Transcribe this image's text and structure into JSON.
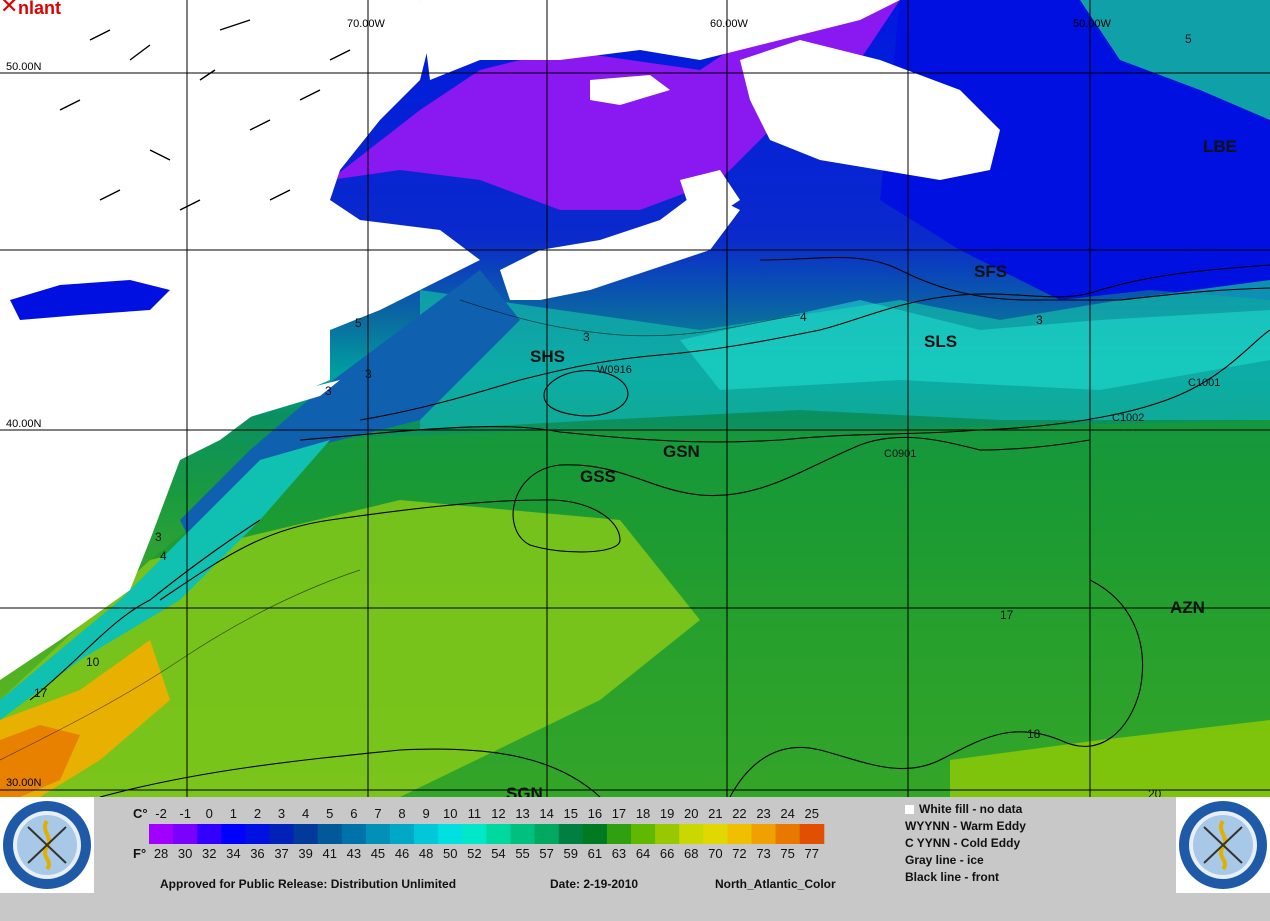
{
  "panel": {
    "title": "nlant",
    "close_glyph": "✕"
  },
  "grid": {
    "longitudes": [
      "70.00W",
      "60.00W",
      "50.00W"
    ],
    "latitudes": [
      "50.00N",
      "40.00N",
      "30.00N"
    ]
  },
  "front_labels": [
    "LBE",
    "SFS",
    "SLS",
    "SHS",
    "GSN",
    "GSS",
    "AZN",
    "SGN"
  ],
  "eddies": [
    "W0916",
    "C1001",
    "C1002",
    "C0901"
  ],
  "isotherm_labels": [
    "5",
    "5",
    "4",
    "3",
    "3",
    "3",
    "3",
    "3",
    "4",
    "10",
    "17",
    "17",
    "18",
    "20"
  ],
  "scale": {
    "celsius": [
      "-2",
      "-1",
      "0",
      "1",
      "2",
      "3",
      "4",
      "5",
      "6",
      "7",
      "8",
      "9",
      "10",
      "11",
      "12",
      "13",
      "14",
      "15",
      "16",
      "17",
      "18",
      "19",
      "20",
      "21",
      "22",
      "23",
      "24",
      "25"
    ],
    "fahrenheit": [
      "28",
      "30",
      "32",
      "34",
      "36",
      "37",
      "39",
      "41",
      "43",
      "45",
      "46",
      "48",
      "50",
      "52",
      "54",
      "55",
      "57",
      "59",
      "61",
      "63",
      "64",
      "66",
      "68",
      "70",
      "72",
      "73",
      "75",
      "77"
    ],
    "colors": [
      "#a000ff",
      "#7a00ff",
      "#3300ff",
      "#0000ff",
      "#0010e0",
      "#0022b8",
      "#003a9a",
      "#005a9a",
      "#0072aa",
      "#0090b8",
      "#00a8c8",
      "#00c8d8",
      "#00e0e0",
      "#00e8c8",
      "#00d8a0",
      "#00c080",
      "#00a860",
      "#008040",
      "#007a20",
      "#30a010",
      "#60b800",
      "#98c800",
      "#c8d800",
      "#e0d800",
      "#f0c000",
      "#f0a000",
      "#e87800",
      "#e05000"
    ],
    "c_label": "C°",
    "f_label": "F°"
  },
  "legend": {
    "white_fill": "White fill -  no data",
    "warm_eddy": "WYYNN - Warm Eddy",
    "cold_eddy": "C YYNN - Cold Eddy",
    "gray_line": "Gray line - ice",
    "black_line": "Black line - front"
  },
  "footer": {
    "approval": "Approved for Public Release: Distribution Unlimited",
    "date": "Date: 2-19-2010",
    "product": "North_Atlantic_Color"
  }
}
